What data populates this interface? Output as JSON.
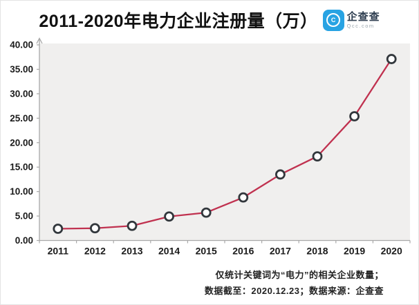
{
  "title": "2011-2020年电力企业注册量（万）",
  "logo": {
    "brand": "企查查",
    "domain": "Qcc.com",
    "glyph": "C",
    "brand_color": "#28a3e3"
  },
  "footer": {
    "note": "仅统计关键词为“电力”的相关企业数量；",
    "source": "数据截至：2020.12.23；数据来源：企查查"
  },
  "colors": {
    "line": "#c0314f",
    "marker_stroke": "#32373c",
    "marker_fill": "#ffffff",
    "axis": "#a8a8a8",
    "plot_bg": "#f0efee",
    "tick_text": "#1a1a1a"
  },
  "chart_data": {
    "type": "line",
    "title": "2011-2020年电力企业注册量（万）",
    "categories": [
      "2011",
      "2012",
      "2013",
      "2014",
      "2015",
      "2016",
      "2017",
      "2018",
      "2019",
      "2020"
    ],
    "values": [
      2.4,
      2.5,
      3.0,
      4.9,
      5.7,
      8.8,
      13.5,
      17.2,
      25.4,
      37.1
    ],
    "series_name": "电力企业注册量(万)",
    "xlabel": "",
    "ylabel": "",
    "ylim": [
      0,
      40
    ],
    "ytick_step": 5,
    "ytick_labels": [
      "0.00",
      "5.00",
      "10.00",
      "15.00",
      "20.00",
      "25.00",
      "30.00",
      "35.00",
      "40.00"
    ],
    "grid": false,
    "legend_position": "none",
    "marker": "open-circle"
  }
}
